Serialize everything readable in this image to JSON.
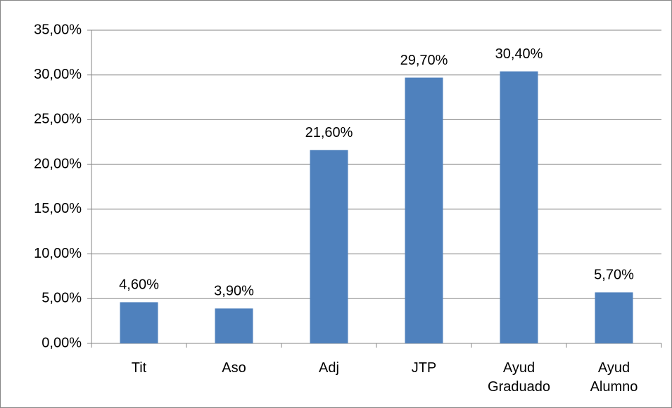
{
  "chart_data": {
    "type": "bar",
    "categories": [
      "Tit",
      "Aso",
      "Adj",
      "JTP",
      "Ayud Graduado",
      "Ayud Alumno"
    ],
    "values": [
      4.6,
      3.9,
      21.6,
      29.7,
      30.4,
      5.7
    ],
    "value_labels": [
      "4,60%",
      "3,90%",
      "21,60%",
      "29,70%",
      "30,40%",
      "5,70%"
    ],
    "color": "#4f81bd",
    "ylim": [
      0,
      35
    ],
    "yticks": [
      {
        "value": 0,
        "label": "0,00%"
      },
      {
        "value": 5,
        "label": "5,00%"
      },
      {
        "value": 10,
        "label": "10,00%"
      },
      {
        "value": 15,
        "label": "15,00%"
      },
      {
        "value": 20,
        "label": "20,00%"
      },
      {
        "value": 25,
        "label": "25,00%"
      },
      {
        "value": 30,
        "label": "30,00%"
      },
      {
        "value": 35,
        "label": "35,00%"
      }
    ],
    "grid": true
  }
}
